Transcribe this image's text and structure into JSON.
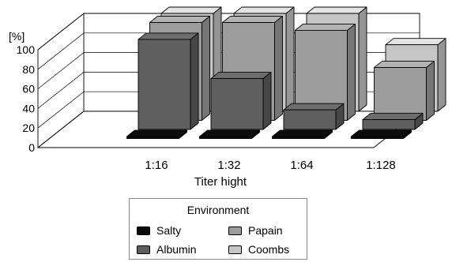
{
  "chart_data": {
    "type": "bar",
    "style": "3d-grouped",
    "categories": [
      "1:16",
      "1:32",
      "1:64",
      "1:128"
    ],
    "series": [
      {
        "name": "Salty",
        "values": [
          2,
          2,
          2,
          2
        ],
        "color": "#0a0a0a"
      },
      {
        "name": "Albumin",
        "values": [
          92,
          52,
          20,
          10
        ],
        "color": "#5f5f5f"
      },
      {
        "name": "Papain",
        "values": [
          100,
          100,
          92,
          54
        ],
        "color": "#9c9c9c"
      },
      {
        "name": "Coombs",
        "values": [
          100,
          100,
          100,
          68
        ],
        "color": "#c6c6c6"
      }
    ],
    "y_unit_label": "[%]",
    "xlabel": "Titer hight",
    "ylabel": "",
    "ylim": [
      0,
      100
    ],
    "yticks": [
      0,
      20,
      40,
      60,
      80,
      100
    ],
    "grid": true,
    "legend": {
      "title": "Environment",
      "placement": "bottom"
    }
  }
}
